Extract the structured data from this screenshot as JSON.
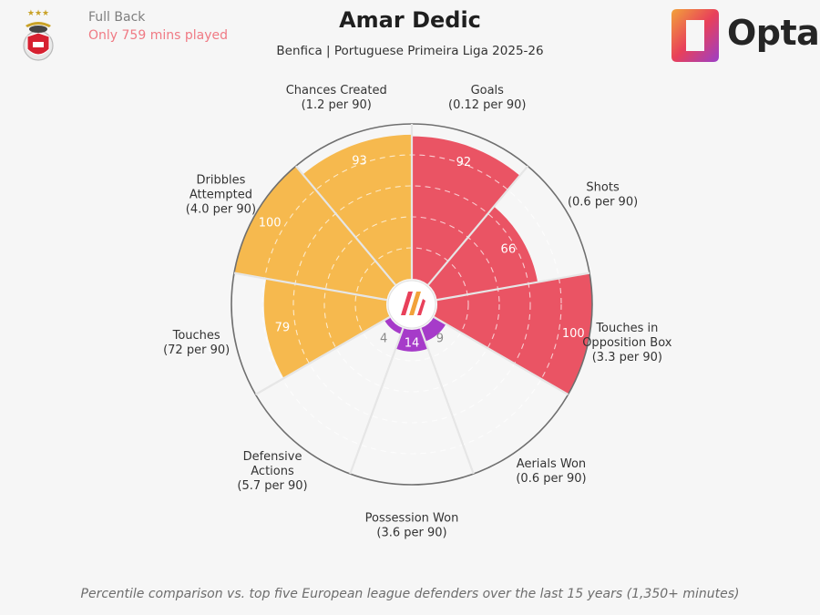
{
  "header": {
    "position": "Full Back",
    "minutes_note": "Only 759 mins played",
    "player_name": "Amar Dedic",
    "subtitle": "Benfica | Portuguese Primeira Liga 2025-26",
    "brand": "Opta"
  },
  "footer": {
    "note": "Percentile comparison vs. top five European league defenders over the last 15 years (1,350+ minutes)"
  },
  "colors": {
    "background": "#f6f6f6",
    "attacking": "#ea5464",
    "creative": "#f6b94e",
    "defending": "#a63bc9",
    "grid": "#e2e2e2",
    "text": "#2c2c2c"
  },
  "chart_data": {
    "type": "polar-bar",
    "title": "Amar Dedic",
    "subtitle": "Benfica | Portuguese Primeira Liga 2025-26",
    "rlim": [
      0,
      100
    ],
    "grid_rings": [
      20,
      40,
      60,
      80,
      100
    ],
    "metrics": [
      {
        "name": "Goals",
        "rate": "(0.12 per 90)",
        "percentile": 92,
        "group": "attacking"
      },
      {
        "name": "Shots",
        "rate": "(0.6 per 90)",
        "percentile": 66,
        "group": "attacking"
      },
      {
        "name": "Touches in Opposition Box",
        "name_lines": [
          "Touches in",
          "Opposition Box"
        ],
        "rate": "(3.3 per 90)",
        "percentile": 100,
        "group": "attacking"
      },
      {
        "name": "Aerials Won",
        "rate": "(0.6 per 90)",
        "percentile": 9,
        "group": "defending"
      },
      {
        "name": "Possession Won",
        "rate": "(3.6 per 90)",
        "percentile": 14,
        "group": "defending"
      },
      {
        "name": "Defensive Actions",
        "name_lines": [
          "Defensive",
          "Actions"
        ],
        "rate": "(5.7 per 90)",
        "percentile": 4,
        "group": "defending"
      },
      {
        "name": "Touches",
        "rate": "(72 per 90)",
        "percentile": 79,
        "group": "creative"
      },
      {
        "name": "Dribbles Attempted",
        "name_lines": [
          "Dribbles",
          "Attempted"
        ],
        "rate": "(4.0 per 90)",
        "percentile": 100,
        "group": "creative"
      },
      {
        "name": "Chances Created",
        "rate": "(1.2 per 90)",
        "percentile": 93,
        "group": "creative"
      }
    ]
  }
}
